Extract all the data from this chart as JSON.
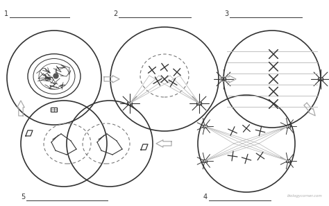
{
  "bg_color": "#ffffff",
  "line_color": "#333333",
  "light_line": "#bbbbbb",
  "dashed_color": "#777777",
  "arrow_color": "#666666",
  "watermark": "biologycorner.com",
  "cell_lw": 1.2,
  "label_fontsize": 7
}
